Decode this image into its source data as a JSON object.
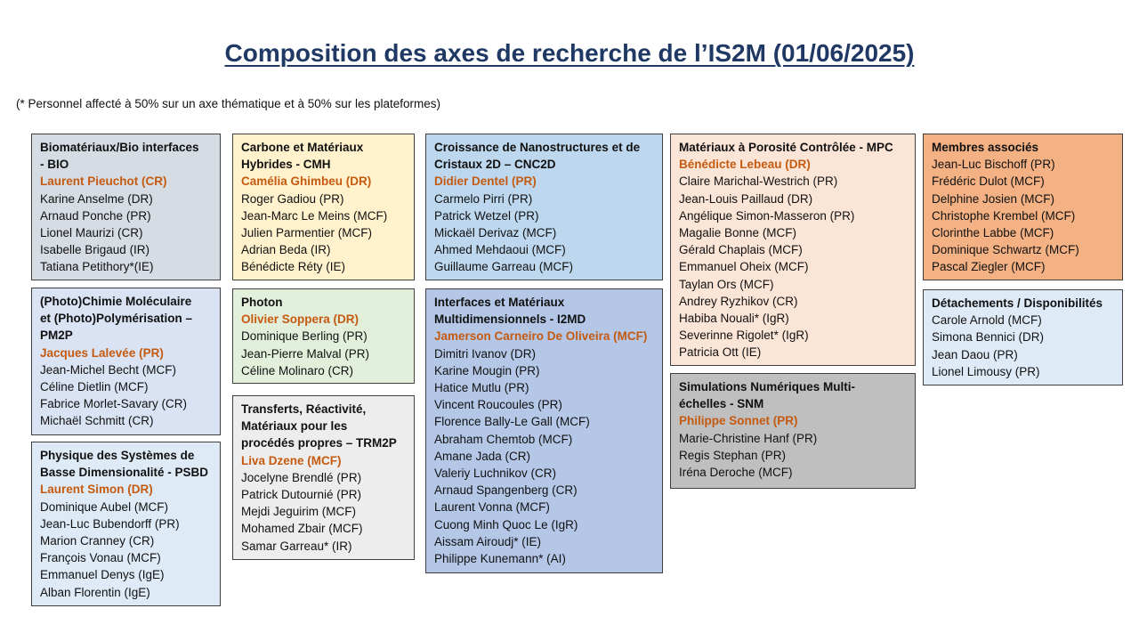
{
  "title": "Composition des axes de recherche de l’IS2M (01/06/2025)",
  "note": "(* Personnel affecté à 50% sur un axe thématique et à 50% sur les plateformes)",
  "colors": {
    "title": "#1f3864",
    "lead": "#c55a11"
  },
  "boxes": [
    {
      "id": "bio",
      "color": "#d6dce4",
      "heading_lines": [
        "Biomatériaux/Bio interfaces",
        "- BIO"
      ],
      "lead": "Laurent Pieuchot (CR)",
      "members": [
        "Karine Anselme (DR)",
        "Arnaud Ponche (PR)",
        "Lionel Maurizi (CR)",
        "Isabelle Brigaud (IR)",
        "Tatiana Petithory*(IE)"
      ]
    },
    {
      "id": "pm2p",
      "color": "#dae3f3",
      "heading_lines": [
        "(Photo)Chimie Moléculaire",
        "et (Photo)Polymérisation –",
        "PM2P"
      ],
      "lead": "Jacques Lalevée (PR)",
      "members": [
        "Jean-Michel Becht (MCF)",
        "Céline Dietlin (MCF)",
        "Fabrice Morlet-Savary (CR)",
        "Michaël Schmitt (CR)"
      ]
    },
    {
      "id": "psbd",
      "color": "#deebf7",
      "heading_lines": [
        "Physique des Systèmes de",
        "Basse Dimensionalité - PSBD"
      ],
      "lead": "Laurent Simon (DR)",
      "members": [
        "Dominique Aubel (MCF)",
        "Jean-Luc Bubendorff (PR)",
        "Marion Cranney (CR)",
        "François Vonau (MCF)",
        "Emmanuel Denys (IgE)",
        "Alban Florentin (IgE)"
      ]
    },
    {
      "id": "cmh",
      "color": "#fff2cc",
      "heading_lines": [
        "Carbone et Matériaux",
        "Hybrides - CMH"
      ],
      "lead": "Camélia Ghimbeu (DR)",
      "members": [
        "Roger Gadiou (PR)",
        "Jean-Marc Le Meins (MCF)",
        "Julien Parmentier (MCF)",
        "Adrian Beda (IR)",
        "Bénédicte Réty (IE)"
      ]
    },
    {
      "id": "photon",
      "color": "#e2efda",
      "heading_lines": [
        "Photon"
      ],
      "lead": "Olivier Soppera (DR)",
      "members": [
        "Dominique Berling (PR)",
        "Jean-Pierre Malval (PR)",
        "Céline Molinaro (CR)"
      ]
    },
    {
      "id": "trm2p",
      "color": "#ededed",
      "heading_lines": [
        "Transferts, Réactivité,",
        "Matériaux pour les",
        "procédés propres – TRM2P"
      ],
      "lead": "Liva Dzene (MCF)",
      "members": [
        "Jocelyne Brendlé (PR)",
        "Patrick Dutournié (PR)",
        "Mejdi Jeguirim (MCF)",
        "Mohamed Zbair (MCF)",
        "Samar Garreau* (IR)"
      ]
    },
    {
      "id": "cnc2d",
      "color": "#bdd7ee",
      "heading_lines": [
        "Croissance de Nanostructures et de",
        "Cristaux 2D – CNC2D"
      ],
      "lead": "Didier Dentel (PR)",
      "members": [
        "Carmelo Pirri (PR)",
        "Patrick Wetzel (PR)",
        "Mickaël Derivaz (MCF)",
        "Ahmed Mehdaoui (MCF)",
        "Guillaume Garreau  (MCF)"
      ]
    },
    {
      "id": "i2md",
      "color": "#b4c7e7",
      "heading_lines": [
        "Interfaces et Matériaux",
        "Multidimensionnels - I2MD"
      ],
      "lead": "Jamerson Carneiro De Oliveira (MCF)",
      "members": [
        "Dimitri Ivanov (DR)",
        "Karine Mougin (PR)",
        "Hatice Mutlu (PR)",
        "Vincent Roucoules (PR)",
        "Florence Bally-Le Gall (MCF)",
        "Abraham Chemtob (MCF)",
        "Amane Jada (CR)",
        "Valeriy Luchnikov (CR)",
        "Arnaud Spangenberg (CR)",
        "Laurent Vonna (MCF)",
        "Cuong Minh Quoc Le (IgR)",
        "Aissam Airoudj* (IE)",
        "Philippe Kunemann* (AI)"
      ]
    },
    {
      "id": "mpc",
      "color": "#fbe5d6",
      "heading_lines": [
        "Matériaux à Porosité Contrôlée - MPC"
      ],
      "lead": "Bénédicte Lebeau (DR)",
      "members": [
        "Claire Marichal-Westrich (PR)",
        "Jean-Louis Paillaud (DR)",
        "Angélique Simon-Masseron (PR)",
        "Magalie Bonne (MCF)",
        "Gérald Chaplais (MCF)",
        "Emmanuel Oheix (MCF)",
        "Taylan Ors (MCF)",
        "Andrey Ryzhikov (CR)",
        "Habiba Nouali* (IgR)",
        "Severinne Rigolet* (IgR)",
        "Patricia Ott (IE)"
      ]
    },
    {
      "id": "snm",
      "color": "#bfbfbf",
      "heading_lines": [
        "Simulations Numériques Multi-",
        "échelles - SNM"
      ],
      "lead": "Philippe Sonnet (PR)",
      "members": [
        "Marie-Christine Hanf (PR)",
        "Regis Stephan (PR)",
        "Iréna Deroche (MCF)"
      ]
    },
    {
      "id": "associes",
      "color": "#f4b183",
      "heading_lines": [
        "Membres associés"
      ],
      "lead": "",
      "members": [
        "Jean-Luc Bischoff (PR)",
        "Frédéric Dulot (MCF)",
        "Delphine Josien (MCF)",
        "Christophe Krembel (MCF)",
        "Clorinthe Labbe (MCF)",
        "Dominique Schwartz (MCF)",
        "Pascal Ziegler (MCF)"
      ]
    },
    {
      "id": "detachements",
      "color": "#deebf7",
      "heading_lines": [
        "Détachements / Disponibilités"
      ],
      "lead": "",
      "members": [
        "Carole Arnold (MCF)",
        "Simona Bennici (DR)",
        "Jean Daou (PR)",
        "Lionel Limousy (PR)"
      ]
    }
  ]
}
